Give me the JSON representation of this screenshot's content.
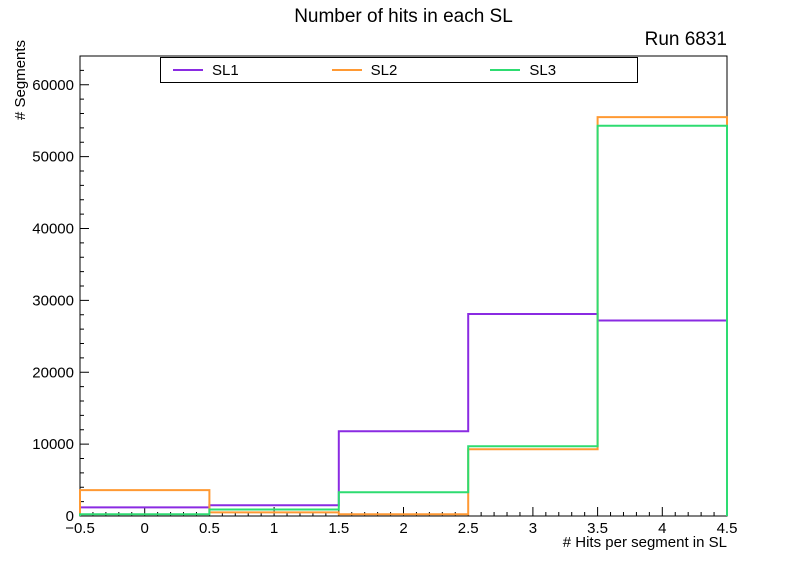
{
  "chart_data": {
    "type": "bar",
    "style": "step-histogram-outline",
    "title": "Number of hits in each SL",
    "annotation": "Run 6831",
    "xlabel": "# Hits per segment in SL",
    "ylabel": "# Segments",
    "bin_edges": [
      -0.5,
      0.5,
      1.5,
      2.5,
      3.5,
      4.5
    ],
    "series": [
      {
        "name": "SL1",
        "color": "#8a2be2",
        "values": [
          1200,
          1500,
          11800,
          28100,
          27200
        ]
      },
      {
        "name": "SL2",
        "color": "#ff9933",
        "values": [
          3600,
          500,
          250,
          9300,
          55500
        ]
      },
      {
        "name": "SL3",
        "color": "#2edc71",
        "values": [
          250,
          900,
          3300,
          9700,
          54300
        ]
      }
    ],
    "xlim": [
      -0.5,
      4.5
    ],
    "ylim": [
      0,
      64000
    ],
    "x_major_ticks": [
      -0.5,
      0,
      0.5,
      1,
      1.5,
      2,
      2.5,
      3,
      3.5,
      4,
      4.5
    ],
    "x_tick_labels": [
      "−0.5",
      "0",
      "0.5",
      "1",
      "1.5",
      "2",
      "2.5",
      "3",
      "3.5",
      "4",
      "4.5"
    ],
    "x_minor_step": 0.1,
    "y_major_ticks": [
      0,
      10000,
      20000,
      30000,
      40000,
      50000,
      60000
    ],
    "y_tick_labels": [
      "0",
      "10000",
      "20000",
      "30000",
      "40000",
      "50000",
      "60000"
    ],
    "y_minor_step": 2000,
    "legend_position": "top-inside",
    "grid": false,
    "frame_color": "#000000",
    "background_color": "#ffffff"
  }
}
